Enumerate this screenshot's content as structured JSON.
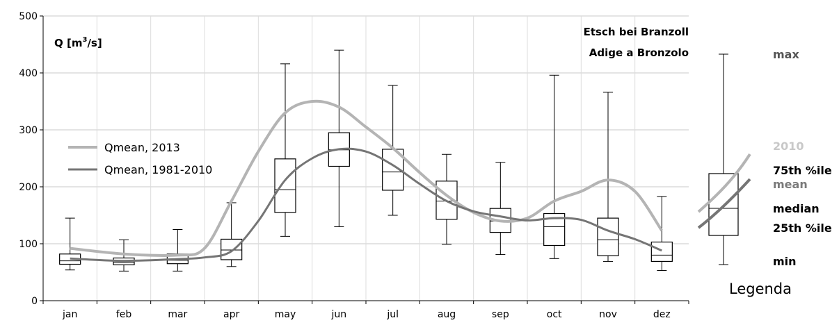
{
  "chart_data": {
    "type": "boxplot",
    "title": "Etsch bei Branzoll",
    "subtitle": "Adige a Bronzolo",
    "ylabel_base": "Q [m",
    "ylabel_sup": "3",
    "ylabel_tail": "/s]",
    "xlabel": "",
    "ylim": [
      0,
      500
    ],
    "yticks": [
      0,
      100,
      200,
      300,
      400,
      500
    ],
    "grid": "horizontal",
    "categories": [
      "jan",
      "feb",
      "mar",
      "apr",
      "may",
      "jun",
      "jul",
      "aug",
      "sep",
      "oct",
      "nov",
      "dez"
    ],
    "boxes": [
      {
        "min": 54,
        "q1": 64,
        "median": 70,
        "q3": 82,
        "max": 145
      },
      {
        "min": 52,
        "q1": 63,
        "median": 67,
        "q3": 75,
        "max": 107
      },
      {
        "min": 52,
        "q1": 65,
        "median": 71,
        "q3": 82,
        "max": 125
      },
      {
        "min": 60,
        "q1": 72,
        "median": 89,
        "q3": 108,
        "max": 172
      },
      {
        "min": 113,
        "q1": 155,
        "median": 195,
        "q3": 249,
        "max": 416
      },
      {
        "min": 130,
        "q1": 236,
        "median": 265,
        "q3": 295,
        "max": 440
      },
      {
        "min": 150,
        "q1": 194,
        "median": 226,
        "q3": 266,
        "max": 378
      },
      {
        "min": 99,
        "q1": 143,
        "median": 175,
        "q3": 210,
        "max": 257
      },
      {
        "min": 81,
        "q1": 120,
        "median": 140,
        "q3": 162,
        "max": 243
      },
      {
        "min": 74,
        "q1": 97,
        "median": 130,
        "q3": 153,
        "max": 396
      },
      {
        "min": 69,
        "q1": 79,
        "median": 107,
        "q3": 145,
        "max": 366
      },
      {
        "min": 53,
        "q1": 69,
        "median": 80,
        "q3": 103,
        "max": 183
      }
    ],
    "series": [
      {
        "name": "Qmean, 2013",
        "color": "#b4b4b4",
        "x": [
          0.5,
          1.5,
          2.5,
          3.0,
          3.5,
          4.0,
          4.5,
          5.0,
          5.5,
          6.0,
          6.5,
          7.0,
          7.5,
          8.0,
          8.5,
          9.0,
          9.5,
          10.0,
          10.5,
          11.0,
          11.5
        ],
        "values": [
          92,
          82,
          80,
          92,
          175,
          262,
          330,
          350,
          340,
          305,
          268,
          225,
          185,
          155,
          140,
          145,
          175,
          192,
          212,
          192,
          123
        ]
      },
      {
        "name": "Qmean, 1981-2010",
        "color": "#757575",
        "x": [
          0.5,
          1.5,
          2.5,
          3.0,
          3.5,
          4.0,
          4.5,
          5.0,
          5.5,
          6.0,
          6.5,
          7.0,
          7.5,
          8.0,
          8.5,
          9.0,
          9.5,
          10.0,
          10.5,
          11.0,
          11.5
        ],
        "values": [
          74,
          70,
          73,
          76,
          87,
          140,
          212,
          250,
          266,
          262,
          238,
          205,
          175,
          157,
          148,
          141,
          145,
          142,
          123,
          108,
          88
        ]
      }
    ]
  },
  "key_legend": {
    "max": "max",
    "y2010": "2010",
    "q75_main": "75th",
    "q75_suffix": "%ile",
    "mean": "mean",
    "median": "median",
    "q25_main": "25th",
    "q25_suffix": "%ile",
    "min": "min",
    "caption": "Legenda"
  },
  "colors": {
    "light_line": "#b4b4b4",
    "dark_line": "#757575",
    "grid": "#c8c8c8",
    "key_2010_text": "#c8c8c8",
    "key_mean_text": "#7a7a7a"
  }
}
